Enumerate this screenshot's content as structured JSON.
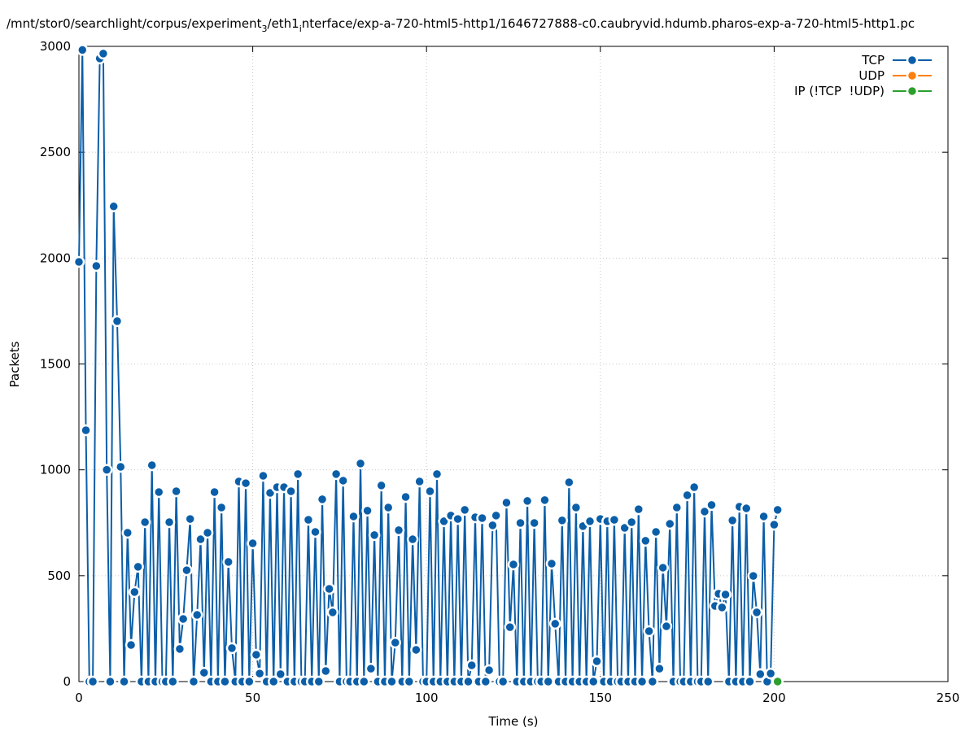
{
  "chart_data": {
    "type": "line",
    "title": [
      "/mnt/stor0/searchlight/corpus/experiment",
      "3",
      "/eth1",
      "i",
      "nterface/exp-a-720-html5-http1/1646727888-c0.caubryvid.hdumb.pharos-exp-a-720-html5-http1.pc"
    ],
    "xlabel": "Time (s)",
    "ylabel": "Packets",
    "xlim": [
      0,
      250
    ],
    "xticks": [
      0,
      50,
      100,
      150,
      200,
      250
    ],
    "ylim": [
      0,
      3000
    ],
    "yticks": [
      0,
      500,
      1000,
      1500,
      2000,
      2500,
      3000
    ],
    "grid": true,
    "legend": "top-right",
    "series": [
      {
        "name": "TCP",
        "color": "#0b5ea8",
        "x": [
          0,
          1,
          2,
          3,
          4,
          5,
          6,
          7,
          8,
          9,
          10,
          11,
          12,
          13,
          14,
          15,
          16,
          17,
          18,
          19,
          20,
          21,
          22,
          23,
          24,
          25,
          26,
          27,
          28,
          29,
          30,
          31,
          32,
          33,
          34,
          35,
          36,
          37,
          38,
          39,
          40,
          41,
          42,
          43,
          44,
          45,
          46,
          47,
          48,
          49,
          50,
          51,
          52,
          53,
          54,
          55,
          56,
          57,
          58,
          59,
          60,
          61,
          62,
          63,
          64,
          65,
          66,
          67,
          68,
          69,
          70,
          71,
          72,
          73,
          74,
          75,
          76,
          77,
          78,
          79,
          80,
          81,
          82,
          83,
          84,
          85,
          86,
          87,
          88,
          89,
          90,
          91,
          92,
          93,
          94,
          95,
          96,
          97,
          98,
          99,
          100,
          101,
          102,
          103,
          104,
          105,
          106,
          107,
          108,
          109,
          110,
          111,
          112,
          113,
          114,
          115,
          116,
          117,
          118,
          119,
          120,
          121,
          122,
          123,
          124,
          125,
          126,
          127,
          128,
          129,
          130,
          131,
          132,
          133,
          134,
          135,
          136,
          137,
          138,
          139,
          140,
          141,
          142,
          143,
          144,
          145,
          146,
          147,
          148,
          149,
          150,
          151,
          152,
          153,
          154,
          155,
          156,
          157,
          158,
          159,
          160,
          161,
          162,
          163,
          164,
          165,
          166,
          167,
          168,
          169,
          170,
          171,
          172,
          173,
          174,
          175,
          176,
          177,
          178,
          179,
          180,
          181,
          182,
          183,
          184,
          185,
          186,
          187,
          188,
          189,
          190,
          191,
          192,
          193,
          194,
          195,
          196,
          197,
          198,
          199,
          200,
          201
        ],
        "values": [
          1982,
          2983,
          1187,
          0,
          0,
          1963,
          2943,
          2966,
          1000,
          0,
          2244,
          1702,
          1014,
          0,
          703,
          173,
          423,
          542,
          0,
          753,
          0,
          1022,
          0,
          895,
          0,
          0,
          753,
          0,
          899,
          154,
          296,
          526,
          768,
          0,
          315,
          672,
          42,
          703,
          0,
          895,
          0,
          822,
          0,
          565,
          158,
          0,
          945,
          0,
          937,
          0,
          653,
          127,
          38,
          972,
          0,
          891,
          0,
          918,
          35,
          918,
          0,
          899,
          0,
          980,
          0,
          0,
          764,
          0,
          707,
          0,
          861,
          50,
          438,
          327,
          980,
          0,
          949,
          0,
          0,
          780,
          0,
          1030,
          0,
          807,
          61,
          692,
          0,
          926,
          0,
          822,
          0,
          184,
          715,
          0,
          872,
          0,
          672,
          150,
          945,
          0,
          0,
          899,
          0,
          980,
          0,
          757,
          0,
          784,
          0,
          768,
          0,
          811,
          0,
          77,
          776,
          0,
          772,
          0,
          54,
          738,
          784,
          0,
          0,
          845,
          257,
          553,
          0,
          749,
          0,
          853,
          0,
          749,
          0,
          0,
          857,
          0,
          557,
          273,
          0,
          761,
          0,
          941,
          0,
          822,
          0,
          734,
          0,
          757,
          0,
          96,
          768,
          0,
          757,
          0,
          764,
          0,
          0,
          726,
          0,
          753,
          0,
          814,
          0,
          665,
          238,
          0,
          707,
          61,
          538,
          261,
          745,
          0,
          822,
          0,
          0,
          880,
          0,
          918,
          0,
          0,
          803,
          0,
          834,
          357,
          415,
          350,
          411,
          0,
          761,
          0,
          826,
          0,
          818,
          0,
          499,
          327,
          35,
          780,
          0,
          38,
          741,
          811
        ]
      },
      {
        "name": "UDP",
        "color": "#ff7f0e",
        "x": [],
        "values": []
      },
      {
        "name": "IP (!TCP  !UDP)",
        "color": "#2ca02c",
        "x": [
          201
        ],
        "values": [
          0
        ]
      }
    ]
  }
}
